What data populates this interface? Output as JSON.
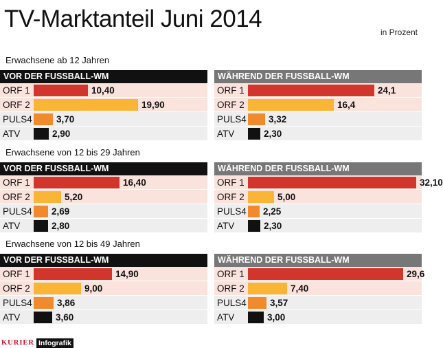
{
  "title": "TV-Marktanteil Juni 2014",
  "unit_label": "in Prozent",
  "footer": {
    "brand": "KURIER",
    "label": "Infografik"
  },
  "colors": {
    "ORF 1": "#d2352b",
    "ORF 2": "#fbb536",
    "PULS4": "#f08a2c",
    "ATV": "#111111",
    "row_shade": "#fbe3dd",
    "row_alt": "#eeeeee"
  },
  "chart_data": [
    {
      "type": "bar",
      "title": "Erwachsene ab 12 Jahren",
      "categories": [
        "ORF 1",
        "ORF 2",
        "PULS4",
        "ATV"
      ],
      "series": [
        {
          "name": "VOR DER FUSSBALL-WM",
          "values": [
            10.4,
            19.9,
            3.7,
            2.9
          ],
          "labels": [
            "10,40",
            "19,90",
            "3,70",
            "2,90"
          ]
        },
        {
          "name": "WÄHREND DER FUSSBALL-WM",
          "values": [
            24.1,
            16.4,
            3.32,
            2.3
          ],
          "labels": [
            "24,1",
            "16,4",
            "3,32",
            "2,30"
          ]
        }
      ],
      "xlim": [
        0,
        33
      ]
    },
    {
      "type": "bar",
      "title": "Erwachsene von 12 bis 29 Jahren",
      "categories": [
        "ORF 1",
        "ORF 2",
        "PULS4",
        "ATV"
      ],
      "series": [
        {
          "name": "VOR DER FUSSBALL-WM",
          "values": [
            16.4,
            5.2,
            2.69,
            2.8
          ],
          "labels": [
            "16,40",
            "5,20",
            "2,69",
            "2,80"
          ]
        },
        {
          "name": "WÄHREND DER FUSSBALL-WM",
          "values": [
            32.1,
            5.0,
            2.25,
            2.3
          ],
          "labels": [
            "32,10",
            "5,00",
            "2,25",
            "2,30"
          ]
        }
      ],
      "xlim": [
        0,
        33
      ]
    },
    {
      "type": "bar",
      "title": "Erwachsene von 12 bis 49 Jahren",
      "categories": [
        "ORF 1",
        "ORF 2",
        "PULS4",
        "ATV"
      ],
      "series": [
        {
          "name": "VOR DER FUSSBALL-WM",
          "values": [
            14.9,
            9.0,
            3.86,
            3.6
          ],
          "labels": [
            "14,90",
            "9,00",
            "3,86",
            "3,60"
          ]
        },
        {
          "name": "WÄHREND DER FUSSBALL-WM",
          "values": [
            29.6,
            7.4,
            3.57,
            3.0
          ],
          "labels": [
            "29,6",
            "7,40",
            "3,57",
            "3,00"
          ]
        }
      ],
      "xlim": [
        0,
        33
      ]
    }
  ]
}
